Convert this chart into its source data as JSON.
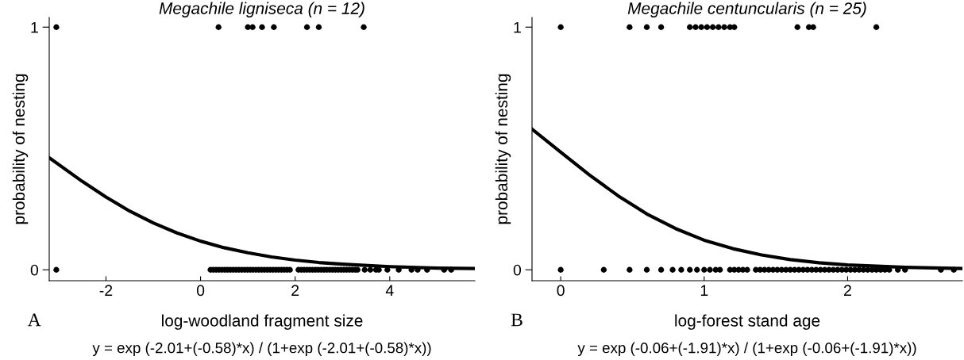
{
  "chart_data": [
    {
      "type": "scatter",
      "title": "Megachile ligniseca (n = 12)",
      "xlabel": "log-woodland fragment size",
      "ylabel": "probability of nesting",
      "xlim": [
        -3.2,
        5.8
      ],
      "ylim": [
        -0.045,
        1.04
      ],
      "xticks": [
        -2,
        0,
        2,
        4
      ],
      "yticks": [
        0,
        1
      ],
      "grid": false,
      "legend": false,
      "annotations": [
        "A",
        "y = exp (-2.01+(-0.58)*x) / (1+exp (-2.01+(-0.58)*x))"
      ],
      "series": [
        {
          "marker": "circle",
          "color": "#000000",
          "x": [
            -3.05,
            0.38,
            1.0,
            1.1,
            1.3,
            1.55,
            2.25,
            2.5,
            3.45,
            -3.05,
            0.21,
            0.27,
            0.33,
            0.39,
            0.45,
            0.51,
            0.57,
            0.63,
            0.69,
            0.75,
            0.81,
            0.87,
            0.93,
            0.99,
            1.05,
            1.11,
            1.17,
            1.23,
            1.29,
            1.35,
            1.41,
            1.47,
            1.53,
            1.59,
            1.65,
            1.71,
            1.77,
            1.83,
            1.89,
            2.07,
            2.13,
            2.19,
            2.25,
            2.31,
            2.37,
            2.43,
            2.49,
            2.55,
            2.61,
            2.67,
            2.73,
            2.79,
            2.85,
            2.91,
            2.97,
            3.03,
            3.09,
            3.15,
            3.21,
            3.27,
            3.32,
            3.47,
            3.59,
            3.71,
            3.77,
            3.95,
            4.19,
            4.46,
            4.59,
            4.79,
            5.15,
            5.3
          ],
          "values": [
            1,
            1,
            1,
            1,
            1,
            1,
            1,
            1,
            1,
            0,
            0,
            0,
            0,
            0,
            0,
            0,
            0,
            0,
            0,
            0,
            0,
            0,
            0,
            0,
            0,
            0,
            0,
            0,
            0,
            0,
            0,
            0,
            0,
            0,
            0,
            0,
            0,
            0,
            0,
            0,
            0,
            0,
            0,
            0,
            0,
            0,
            0,
            0,
            0,
            0,
            0,
            0,
            0,
            0,
            0,
            0,
            0,
            0,
            0,
            0,
            0,
            0,
            0,
            0,
            0,
            0,
            0,
            0,
            0,
            0,
            0,
            0
          ]
        },
        {
          "type": "line",
          "color": "#000000",
          "line_style": "solid",
          "x": [
            -3.2,
            -2.5,
            -2,
            -1.5,
            -1,
            -0.5,
            0,
            0.5,
            1,
            1.5,
            2,
            2.5,
            3,
            4,
            5,
            5.8
          ],
          "values": [
            0.462,
            0.364,
            0.3,
            0.242,
            0.193,
            0.152,
            0.118,
            0.091,
            0.07,
            0.053,
            0.04,
            0.03,
            0.023,
            0.013,
            0.007,
            0.005
          ]
        }
      ]
    },
    {
      "type": "scatter",
      "title": "Megachile centuncularis (n = 25)",
      "xlabel": "log-forest stand age",
      "ylabel": "probability of nesting",
      "xlim": [
        -0.2,
        2.8
      ],
      "ylim": [
        -0.045,
        1.04
      ],
      "xticks": [
        0,
        1,
        2
      ],
      "yticks": [
        0,
        1
      ],
      "grid": false,
      "legend": false,
      "annotations": [
        "B",
        "y = exp (-0.06+(-1.91)*x) / (1+exp (-0.06+(-1.91)*x))"
      ],
      "series": [
        {
          "marker": "circle",
          "color": "#000000",
          "x": [
            0,
            0.48,
            0.6,
            0.7,
            0.9,
            0.94,
            0.98,
            1.02,
            1.06,
            1.1,
            1.14,
            1.18,
            1.21,
            1.65,
            1.73,
            1.76,
            2.2,
            0,
            0.3,
            0.48,
            0.6,
            0.7,
            0.78,
            0.84,
            0.9,
            0.95,
            1.0,
            1.04,
            1.08,
            1.11,
            1.18,
            1.21,
            1.24,
            1.27,
            1.3,
            1.36,
            1.39,
            1.42,
            1.45,
            1.48,
            1.51,
            1.54,
            1.57,
            1.6,
            1.63,
            1.66,
            1.69,
            1.72,
            1.75,
            1.78,
            1.81,
            1.84,
            1.87,
            1.9,
            1.93,
            1.96,
            1.99,
            2.02,
            2.05,
            2.08,
            2.11,
            2.14,
            2.17,
            2.2,
            2.23,
            2.26,
            2.29,
            2.35,
            2.4,
            2.65,
            2.74
          ],
          "values": [
            1,
            1,
            1,
            1,
            1,
            1,
            1,
            1,
            1,
            1,
            1,
            1,
            1,
            1,
            1,
            1,
            1,
            0,
            0,
            0,
            0,
            0,
            0,
            0,
            0,
            0,
            0,
            0,
            0,
            0,
            0,
            0,
            0,
            0,
            0,
            0,
            0,
            0,
            0,
            0,
            0,
            0,
            0,
            0,
            0,
            0,
            0,
            0,
            0,
            0,
            0,
            0,
            0,
            0,
            0,
            0,
            0,
            0,
            0,
            0,
            0,
            0,
            0,
            0,
            0,
            0,
            0,
            0,
            0,
            0,
            0
          ]
        },
        {
          "type": "line",
          "color": "#000000",
          "line_style": "solid",
          "x": [
            -0.2,
            0,
            0.2,
            0.4,
            0.6,
            0.8,
            1.0,
            1.2,
            1.4,
            1.6,
            1.8,
            2.0,
            2.4,
            2.8
          ],
          "values": [
            0.58,
            0.485,
            0.391,
            0.305,
            0.23,
            0.17,
            0.122,
            0.087,
            0.061,
            0.042,
            0.029,
            0.02,
            0.01,
            0.005
          ]
        }
      ]
    }
  ]
}
